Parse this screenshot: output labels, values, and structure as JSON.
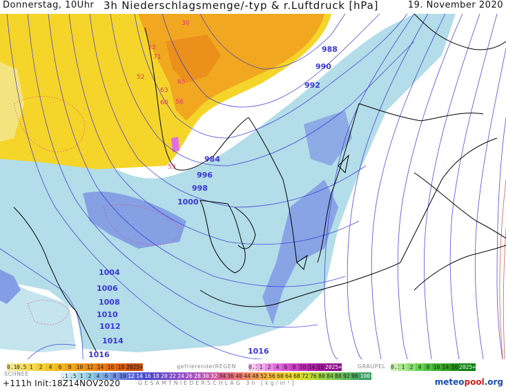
{
  "header": {
    "day_time": "Donnerstag, 10Uhr",
    "title": "3h Niederschlagsmenge/-typ & r.Luftdruck [hPa]",
    "date": "19. November 2020"
  },
  "isobars": [
    "988",
    "990",
    "992",
    "984",
    "996",
    "998",
    "1000",
    "1004",
    "1006",
    "1008",
    "1010",
    "1012",
    "1014",
    "1016",
    "1016"
  ],
  "precip_labels": [
    "52",
    "53",
    "56",
    "60",
    "63",
    "65",
    "71",
    "30",
    "33"
  ],
  "legend": {
    "snow_label": "SCHNEE",
    "freezing_rain_label": "gefrierenderREGEN",
    "graupel_label": "GRAUPEL",
    "total_label": "GESAMTNIEDERSCHLAG 3h [kg/m²]",
    "snow_values": [
      "0.1",
      "0.5",
      "1",
      "2",
      "4",
      "6",
      "8",
      "10",
      "12",
      "14",
      "16",
      "18",
      "2025+"
    ],
    "freezing_values": [
      "0.1",
      "1",
      "2",
      "4",
      "6",
      "8",
      "10",
      "14",
      "16",
      "2025+"
    ],
    "graupel_values": [
      "0.1",
      "1",
      "2",
      "4",
      "8",
      "10",
      "14",
      "16",
      "2025+"
    ],
    "total_values": [
      ".1",
      ".5",
      "1",
      "2",
      "4",
      "6",
      "8",
      "10",
      "12",
      "14",
      "16",
      "18",
      "20",
      "22",
      "24",
      "26",
      "28",
      "30",
      "32",
      "34",
      "36",
      "40",
      "44",
      "48",
      "52",
      "56",
      "60",
      "64",
      "68",
      "72",
      "76",
      "80",
      "84",
      "88",
      "92",
      "96",
      "100"
    ]
  },
  "footer": {
    "init": "+111h  Init:18Z14NOV2020",
    "brand_a": "meteo",
    "brand_b": "pool",
    "brand_c": ".org"
  },
  "colors": {
    "isobar": "#3a36d8",
    "rain_light": "#a9d9e6",
    "rain_blue": "#6f8fe0",
    "snow_yellow": "#f3d21c",
    "snow_orange": "#f0a21a",
    "land_border": "#000000"
  }
}
